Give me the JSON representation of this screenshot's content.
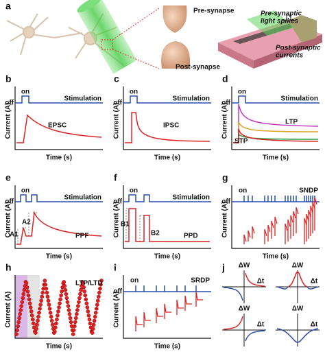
{
  "panel_a": {
    "label": "a",
    "pre_synapse": "Pre-synapse",
    "post_synapse": "Post-synapse",
    "light_spikes": [
      "Pre-synaptic",
      "light spikes"
    ],
    "currents": [
      "Post-synaptic",
      "currents"
    ]
  },
  "panels": [
    {
      "label": "b",
      "stimulus": {
        "on": "on",
        "off": "off",
        "name": "Stimulation"
      },
      "ylabel": "Current (A)",
      "xlabel": "Time (s)",
      "annotations": [
        "EPSC"
      ]
    },
    {
      "label": "c",
      "stimulus": {
        "on": "on",
        "off": "off",
        "name": "Stimulation"
      },
      "ylabel": "Current (A)",
      "xlabel": "Time (s)",
      "annotations": [
        "IPSC"
      ]
    },
    {
      "label": "d",
      "stimulus": {
        "on": "on",
        "off": "off",
        "name": "Stimulation"
      },
      "ylabel": "Current (A)",
      "xlabel": "Time (s)",
      "annotations": [
        "LTP",
        "STP"
      ]
    },
    {
      "label": "e",
      "stimulus": {
        "on": "on",
        "off": "off",
        "name": "Stimulation"
      },
      "ylabel": "Current (A)",
      "xlabel": "Time (s)",
      "annotations": [
        "A1",
        "A2",
        "PPF"
      ]
    },
    {
      "label": "f",
      "stimulus": {
        "on": "on",
        "off": "off",
        "name": "Stimulation"
      },
      "ylabel": "Current (A)",
      "xlabel": "Time (s)",
      "annotations": [
        "B1",
        "B2",
        "PPD"
      ]
    },
    {
      "label": "g",
      "stimulus": {
        "on": "on",
        "off": "off",
        "name": "SNDP"
      },
      "ylabel": "Current (A)",
      "xlabel": "Time (s)"
    },
    {
      "label": "h",
      "ylabel": "Current (A)",
      "xlabel": "Time (s)",
      "annotations": [
        "LTP/LTD"
      ]
    },
    {
      "label": "i",
      "stimulus": {
        "on": "on",
        "off": "off",
        "name": "SRDP"
      },
      "ylabel": "Current (A)",
      "xlabel": "Time (s)"
    }
  ],
  "panel_j": {
    "label": "j",
    "plots": [
      {
        "ylabel": "ΔW",
        "xlabel": "Δt"
      },
      {
        "ylabel": "ΔW",
        "xlabel": "Δt"
      },
      {
        "ylabel": "ΔW",
        "xlabel": "Δt"
      },
      {
        "ylabel": "ΔW",
        "xlabel": "Δt"
      }
    ]
  }
}
